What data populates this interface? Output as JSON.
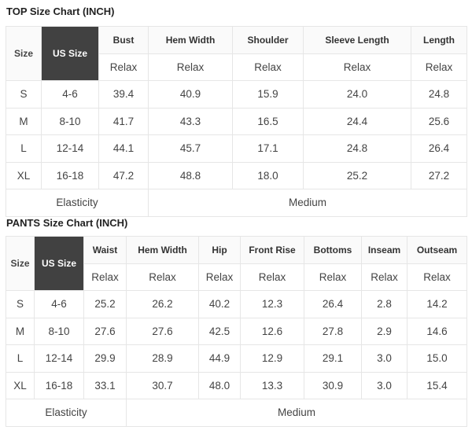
{
  "top": {
    "title": "TOP Size Chart (INCH)",
    "size_label": "Size",
    "us_size_label": "US Size",
    "columns": [
      "Bust",
      "Hem Width",
      "Shoulder",
      "Sleeve Length",
      "Length"
    ],
    "fit": "Relax",
    "rows": [
      {
        "size": "S",
        "us": "4-6",
        "values": [
          "39.4",
          "40.9",
          "15.9",
          "24.0",
          "24.8"
        ]
      },
      {
        "size": "M",
        "us": "8-10",
        "values": [
          "41.7",
          "43.3",
          "16.5",
          "24.4",
          "25.6"
        ]
      },
      {
        "size": "L",
        "us": "12-14",
        "values": [
          "44.1",
          "45.7",
          "17.1",
          "24.8",
          "26.4"
        ]
      },
      {
        "size": "XL",
        "us": "16-18",
        "values": [
          "47.2",
          "48.8",
          "18.0",
          "25.2",
          "27.2"
        ]
      }
    ],
    "elasticity_label": "Elasticity",
    "elasticity_value": "Medium"
  },
  "pants": {
    "title": "PANTS Size Chart (INCH)",
    "size_label": "Size",
    "us_size_label": "US Size",
    "columns": [
      "Waist",
      "Hem Width",
      "Hip",
      "Front Rise",
      "Bottoms",
      "Inseam",
      "Outseam"
    ],
    "fit": "Relax",
    "rows": [
      {
        "size": "S",
        "us": "4-6",
        "values": [
          "25.2",
          "26.2",
          "40.2",
          "12.3",
          "26.4",
          "2.8",
          "14.2"
        ]
      },
      {
        "size": "M",
        "us": "8-10",
        "values": [
          "27.6",
          "27.6",
          "42.5",
          "12.6",
          "27.8",
          "2.9",
          "14.6"
        ]
      },
      {
        "size": "L",
        "us": "12-14",
        "values": [
          "29.9",
          "28.9",
          "44.9",
          "12.9",
          "29.1",
          "3.0",
          "15.0"
        ]
      },
      {
        "size": "XL",
        "us": "16-18",
        "values": [
          "33.1",
          "30.7",
          "48.0",
          "13.3",
          "30.9",
          "3.0",
          "15.4"
        ]
      }
    ],
    "elasticity_label": "Elasticity",
    "elasticity_value": "Medium"
  }
}
